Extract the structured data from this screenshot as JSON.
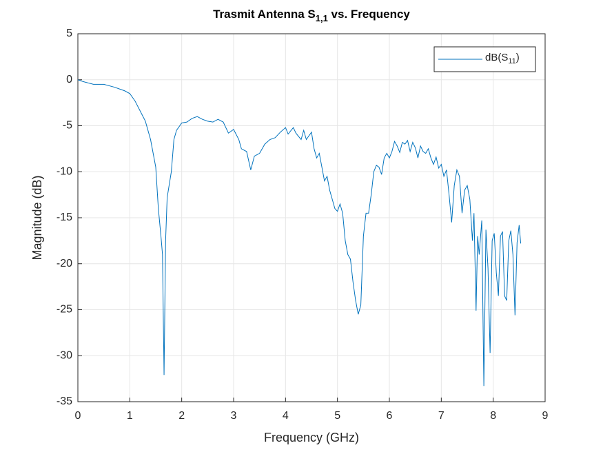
{
  "chart_data": {
    "type": "line",
    "title": [
      "Trasmit Antenna S",
      "1,1",
      " vs. Frequency"
    ],
    "xlabel": "Frequency (GHz)",
    "ylabel": "Magnitude (dB)",
    "x": [
      0,
      0.1,
      0.3,
      0.5,
      0.7,
      0.9,
      1.0,
      1.1,
      1.2,
      1.3,
      1.4,
      1.5,
      1.55,
      1.6,
      1.63,
      1.66,
      1.69,
      1.72,
      1.8,
      1.85,
      1.9,
      2.0,
      2.1,
      2.2,
      2.3,
      2.4,
      2.5,
      2.6,
      2.7,
      2.8,
      2.9,
      3.0,
      3.1,
      3.15,
      3.25,
      3.33,
      3.4,
      3.5,
      3.6,
      3.7,
      3.8,
      3.9,
      4.0,
      4.05,
      4.15,
      4.2,
      4.3,
      4.35,
      4.4,
      4.5,
      4.55,
      4.6,
      4.65,
      4.7,
      4.75,
      4.8,
      4.85,
      4.9,
      4.95,
      5.0,
      5.05,
      5.1,
      5.15,
      5.2,
      5.25,
      5.3,
      5.35,
      5.4,
      5.45,
      5.5,
      5.55,
      5.6,
      5.65,
      5.7,
      5.75,
      5.8,
      5.85,
      5.9,
      5.95,
      6.0,
      6.05,
      6.1,
      6.15,
      6.2,
      6.25,
      6.3,
      6.35,
      6.4,
      6.45,
      6.5,
      6.55,
      6.6,
      6.65,
      6.7,
      6.75,
      6.8,
      6.85,
      6.9,
      6.95,
      7.0,
      7.05,
      7.1,
      7.15,
      7.2,
      7.25,
      7.3,
      7.35,
      7.4,
      7.45,
      7.5,
      7.55,
      7.6,
      7.63,
      7.67,
      7.7,
      7.73,
      7.78,
      7.82,
      7.86,
      7.9,
      7.94,
      7.98,
      8.02,
      8.06,
      8.1,
      8.14,
      8.18,
      8.22,
      8.26,
      8.3,
      8.34,
      8.38,
      8.42,
      8.46,
      8.5,
      8.53
    ],
    "series": [
      {
        "name": [
          "dB(S",
          "11",
          ")"
        ],
        "color": "#0072bd",
        "values": [
          0,
          -0.2,
          -0.5,
          -0.5,
          -0.8,
          -1.2,
          -1.5,
          -2.3,
          -3.4,
          -4.5,
          -6.5,
          -9.5,
          -14,
          -17,
          -19,
          -32.1,
          -17.5,
          -12.8,
          -10,
          -6.5,
          -5.5,
          -4.7,
          -4.6,
          -4.2,
          -4.0,
          -4.3,
          -4.5,
          -4.6,
          -4.3,
          -4.6,
          -5.8,
          -5.4,
          -6.5,
          -7.5,
          -7.8,
          -9.8,
          -8.3,
          -8.0,
          -7.0,
          -6.5,
          -6.3,
          -5.7,
          -5.2,
          -5.9,
          -5.2,
          -5.8,
          -6.5,
          -5.5,
          -6.5,
          -5.7,
          -7.5,
          -8.5,
          -8,
          -9.5,
          -11.0,
          -10.5,
          -12,
          -13.0,
          -14.0,
          -14.3,
          -13.5,
          -14.5,
          -17.5,
          -19.0,
          -19.5,
          -22,
          -24,
          -25.5,
          -24.5,
          -17,
          -14.5,
          -14.5,
          -12.5,
          -10,
          -9.3,
          -9.5,
          -10.3,
          -8.5,
          -8.0,
          -8.5,
          -7.8,
          -6.7,
          -7.2,
          -7.9,
          -6.8,
          -7.0,
          -6.6,
          -7.8,
          -6.8,
          -7.4,
          -8.5,
          -7.2,
          -7.8,
          -8.0,
          -7.5,
          -8.5,
          -9.2,
          -8.4,
          -9.6,
          -9.2,
          -10.5,
          -9.8,
          -12.5,
          -15.5,
          -11.5,
          -9.8,
          -10.5,
          -14.5,
          -12,
          -11.5,
          -13,
          -17.5,
          -14.5,
          -25.1,
          -17,
          -19,
          -15.3,
          -33.3,
          -16.3,
          -20.5,
          -29.7,
          -17.5,
          -16.7,
          -21,
          -23.5,
          -17,
          -16.5,
          -23.5,
          -24,
          -17.5,
          -16.4,
          -19,
          -25.6,
          -17.7,
          -15.8,
          -17.8
        ]
      }
    ],
    "xlim": [
      0,
      9
    ],
    "xticks": [
      0,
      1,
      2,
      3,
      4,
      5,
      6,
      7,
      8,
      9
    ],
    "ylim": [
      -35,
      5
    ],
    "yticks": [
      -35,
      -30,
      -25,
      -20,
      -15,
      -10,
      -5,
      0,
      5
    ],
    "grid": true,
    "legend": "northeast"
  }
}
